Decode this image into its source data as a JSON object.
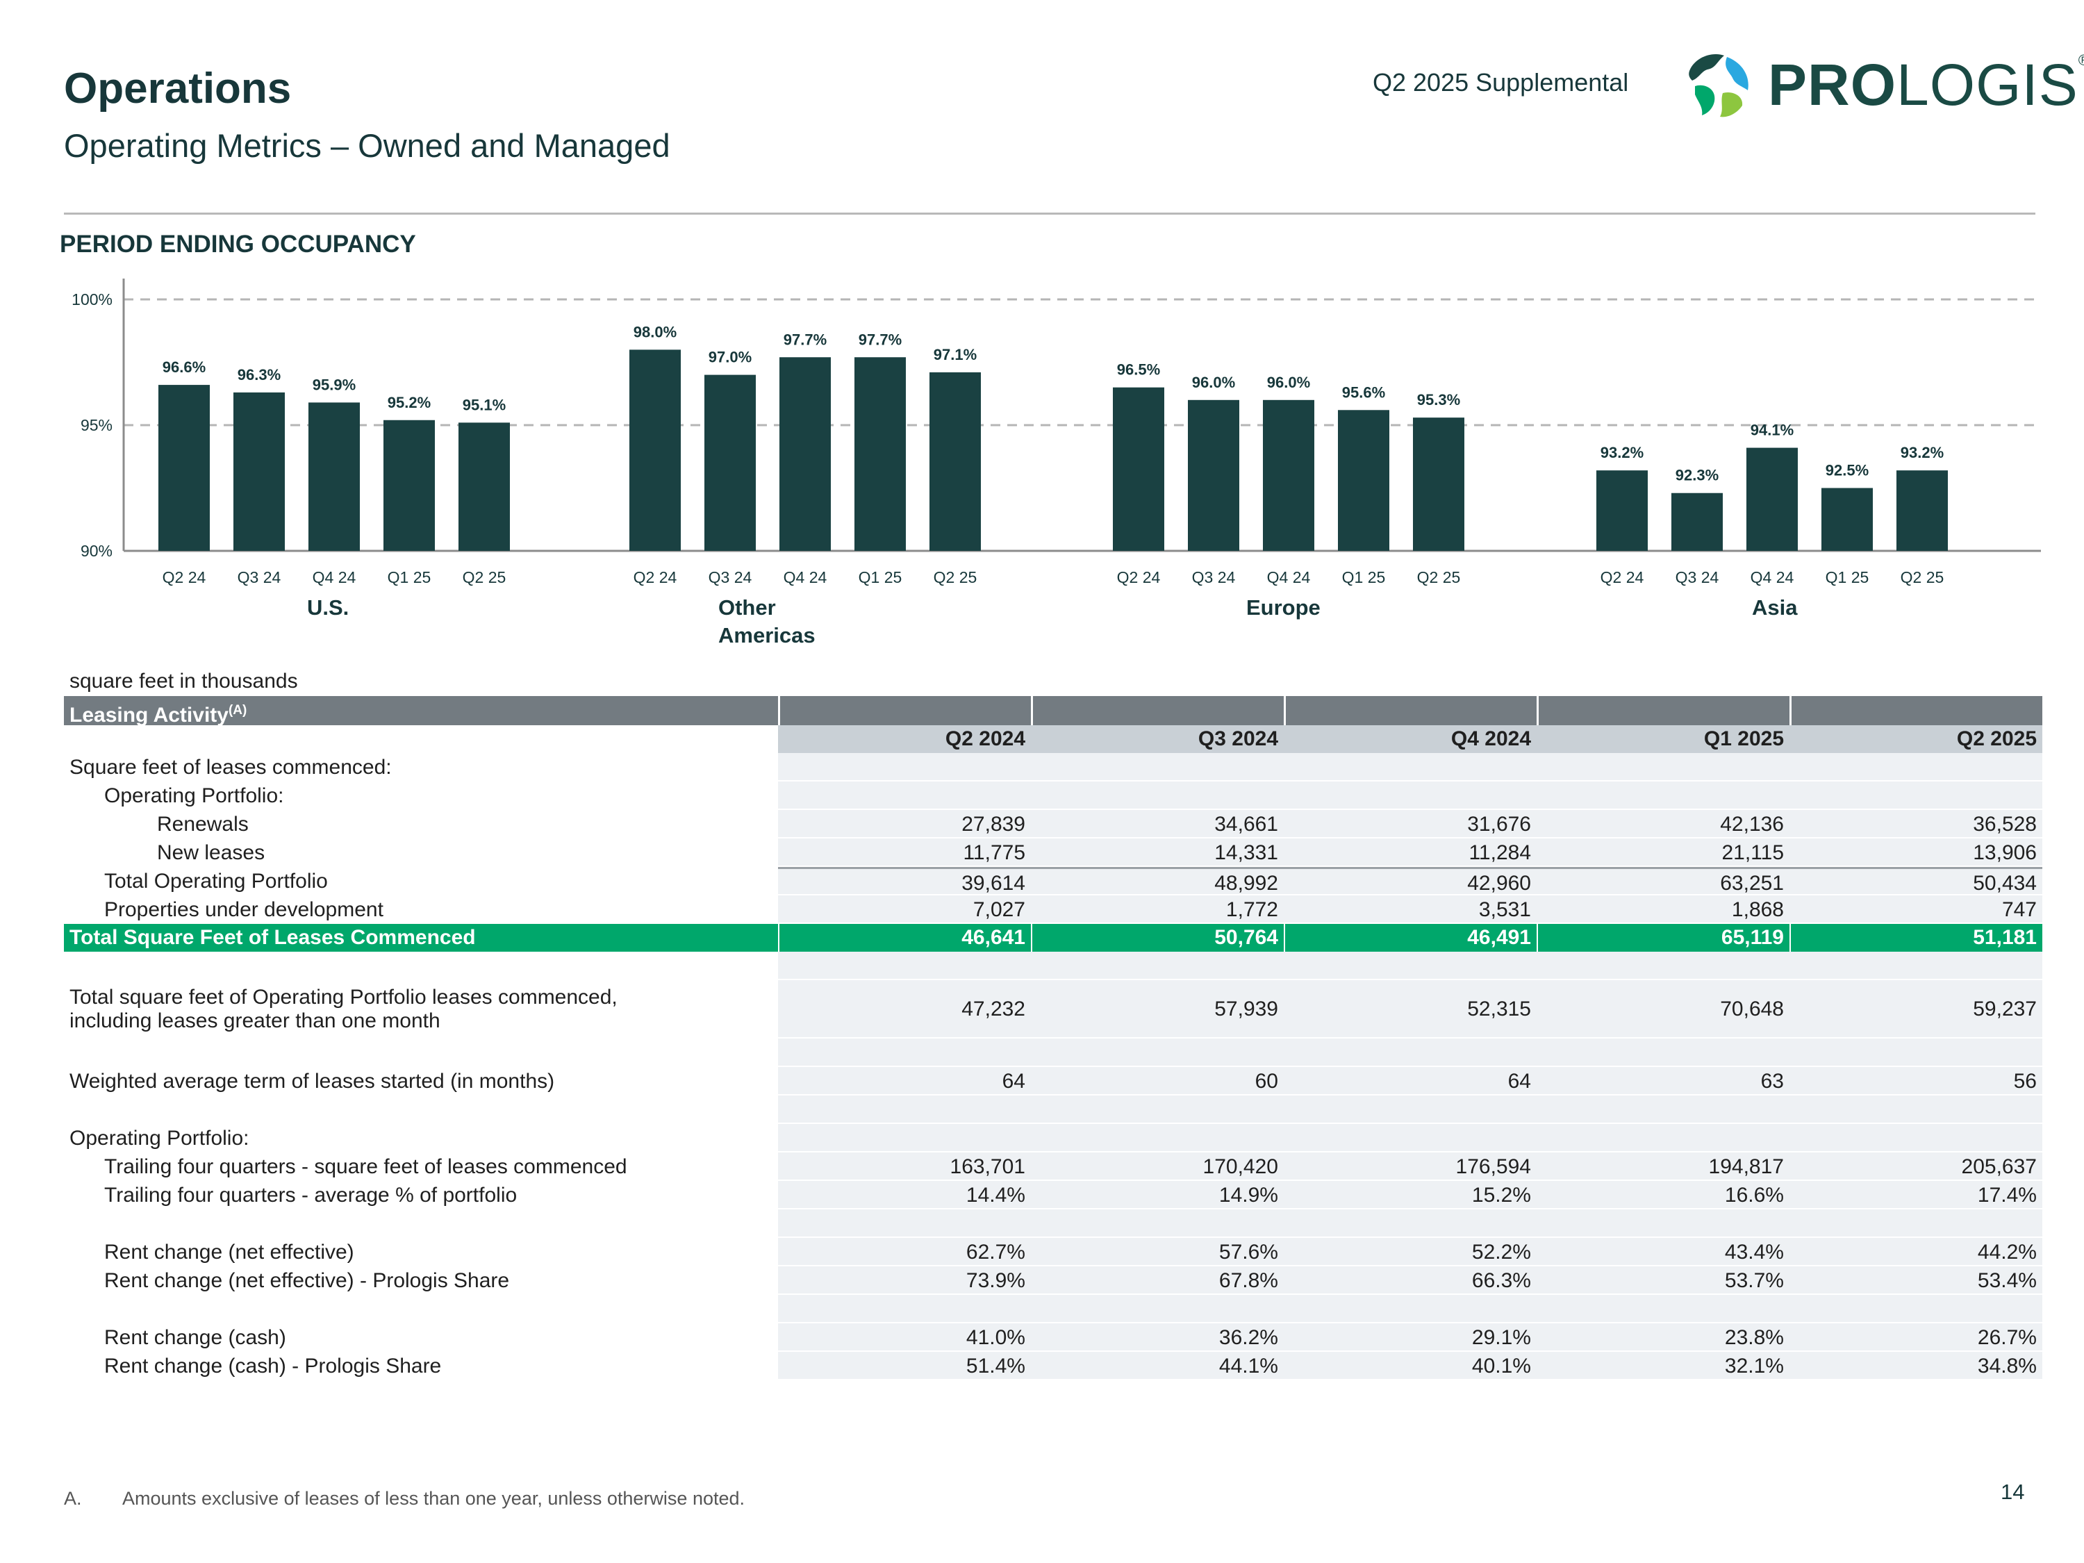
{
  "header": {
    "title": "Operations",
    "subtitle": "Operating Metrics – Owned and Managed",
    "supplemental": "Q2 2025 Supplemental",
    "logo_bold": "PRO",
    "logo_light": "LOGIS",
    "logo_mark": "®"
  },
  "section_title": "PERIOD ENDING OCCUPANCY",
  "colors": {
    "bar": "#1a4142",
    "green": "#00a76b",
    "header_gray": "#737b81"
  },
  "chart_data": {
    "type": "bar",
    "ylim": [
      90,
      100
    ],
    "yticks": [
      90,
      95,
      100
    ],
    "ytick_labels": [
      "90%",
      "95%",
      "100%"
    ],
    "grid": "dashed at 95% and 100%",
    "groups": [
      {
        "name": "U.S.",
        "categories": [
          "Q2 24",
          "Q3 24",
          "Q4 24",
          "Q1 25",
          "Q2 25"
        ],
        "values": [
          96.6,
          96.3,
          95.9,
          95.2,
          95.1
        ],
        "labels": [
          "96.6%",
          "96.3%",
          "95.9%",
          "95.2%",
          "95.1%"
        ]
      },
      {
        "name": "Other Americas",
        "name_lines": [
          "Other",
          "Americas"
        ],
        "categories": [
          "Q2 24",
          "Q3 24",
          "Q4 24",
          "Q1 25",
          "Q2 25"
        ],
        "values": [
          98.0,
          97.0,
          97.7,
          97.7,
          97.1
        ],
        "labels": [
          "98.0%",
          "97.0%",
          "97.7%",
          "97.7%",
          "97.1%"
        ]
      },
      {
        "name": "Europe",
        "categories": [
          "Q2 24",
          "Q3 24",
          "Q4 24",
          "Q1 25",
          "Q2 25"
        ],
        "values": [
          96.5,
          96.0,
          96.0,
          95.6,
          95.3
        ],
        "labels": [
          "96.5%",
          "96.0%",
          "96.0%",
          "95.6%",
          "95.3%"
        ]
      },
      {
        "name": "Asia",
        "categories": [
          "Q2 24",
          "Q3 24",
          "Q4 24",
          "Q1 25",
          "Q2 25"
        ],
        "values": [
          93.2,
          92.3,
          94.1,
          92.5,
          93.2
        ],
        "labels": [
          "93.2%",
          "92.3%",
          "94.1%",
          "92.5%",
          "93.2%"
        ]
      }
    ]
  },
  "table": {
    "note": "square feet in thousands",
    "title": "Leasing Activity",
    "title_sup": "(A)",
    "columns": [
      "Q2 2024",
      "Q3 2024",
      "Q4 2024",
      "Q1 2025",
      "Q2 2025"
    ],
    "rows": {
      "sq_ft_label": "Square feet of leases commenced:",
      "op_portfolio_label": "Operating Portfolio:",
      "renewals": {
        "label": "Renewals",
        "values": [
          "27,839",
          "34,661",
          "31,676",
          "42,136",
          "36,528"
        ]
      },
      "new_leases": {
        "label": "New leases",
        "values": [
          "11,775",
          "14,331",
          "11,284",
          "21,115",
          "13,906"
        ]
      },
      "total_op": {
        "label": "Total Operating Portfolio",
        "values": [
          "39,614",
          "48,992",
          "42,960",
          "63,251",
          "50,434"
        ]
      },
      "under_dev": {
        "label": "Properties under development",
        "values": [
          "7,027",
          "1,772",
          "3,531",
          "1,868",
          "747"
        ]
      },
      "total_commenced": {
        "label": "Total Square Feet of Leases Commenced",
        "values": [
          "46,641",
          "50,764",
          "46,491",
          "65,119",
          "51,181"
        ]
      },
      "incl_month": {
        "label_line1": "Total square feet of Operating Portfolio leases commenced,",
        "label_line2": "including leases greater than one month",
        "values": [
          "47,232",
          "57,939",
          "52,315",
          "70,648",
          "59,237"
        ]
      },
      "wavg_term": {
        "label": "Weighted average term of leases started (in months)",
        "values": [
          "64",
          "60",
          "64",
          "63",
          "56"
        ]
      },
      "op_portfolio_label2": "Operating Portfolio:",
      "trailing_sqft": {
        "label": "Trailing four quarters - square feet of leases commenced",
        "values": [
          "163,701",
          "170,420",
          "176,594",
          "194,817",
          "205,637"
        ]
      },
      "trailing_pct": {
        "label": "Trailing four quarters - average % of portfolio",
        "values": [
          "14.4%",
          "14.9%",
          "15.2%",
          "16.6%",
          "17.4%"
        ]
      },
      "rent_net": {
        "label": "Rent change (net effective)",
        "values": [
          "62.7%",
          "57.6%",
          "52.2%",
          "43.4%",
          "44.2%"
        ]
      },
      "rent_net_share": {
        "label": "Rent change (net effective) - Prologis Share",
        "values": [
          "73.9%",
          "67.8%",
          "66.3%",
          "53.7%",
          "53.4%"
        ]
      },
      "rent_cash": {
        "label": "Rent change (cash)",
        "values": [
          "41.0%",
          "36.2%",
          "29.1%",
          "23.8%",
          "26.7%"
        ]
      },
      "rent_cash_share": {
        "label": "Rent change (cash) - Prologis Share",
        "values": [
          "51.4%",
          "44.1%",
          "40.1%",
          "32.1%",
          "34.8%"
        ]
      }
    }
  },
  "footnote": {
    "letter": "A.",
    "text": "Amounts exclusive of leases of less than one year, unless otherwise noted."
  },
  "page_number": "14"
}
